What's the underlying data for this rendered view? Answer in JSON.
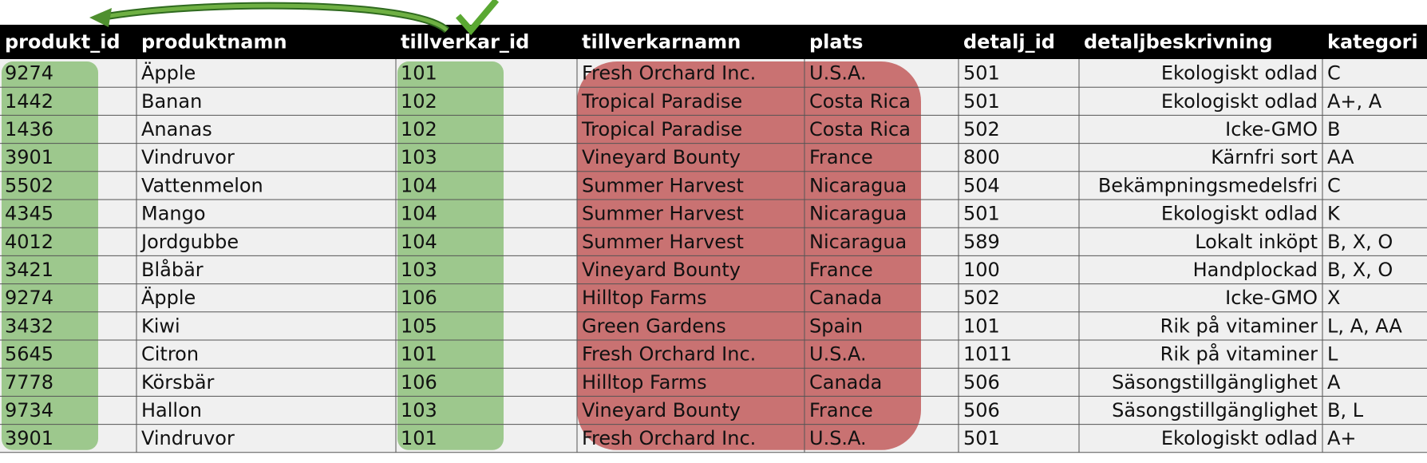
{
  "table": {
    "headers": [
      "produkt_id",
      "produktnamn",
      "tillverkar_id",
      "tillverkarnamn",
      "plats",
      "detalj_id",
      "detaljbeskrivning",
      "kategori"
    ],
    "rows": [
      [
        "9274",
        "Äpple",
        "101",
        "Fresh Orchard Inc.",
        "U.S.A.",
        "501",
        "Ekologiskt odlad",
        "C"
      ],
      [
        "1442",
        "Banan",
        "102",
        "Tropical Paradise",
        "Costa Rica",
        "501",
        "Ekologiskt odlad",
        "A+, A"
      ],
      [
        "1436",
        "Ananas",
        "102",
        "Tropical Paradise",
        "Costa Rica",
        "502",
        "Icke-GMO",
        "B"
      ],
      [
        "3901",
        "Vindruvor",
        "103",
        "Vineyard Bounty",
        "France",
        "800",
        "Kärnfri sort",
        "AA"
      ],
      [
        "5502",
        "Vattenmelon",
        "104",
        "Summer Harvest",
        "Nicaragua",
        "504",
        "Bekämpningsmedelsfri",
        "C"
      ],
      [
        "4345",
        "Mango",
        "104",
        "Summer Harvest",
        "Nicaragua",
        "501",
        "Ekologiskt odlad",
        "K"
      ],
      [
        "4012",
        "Jordgubbe",
        "104",
        "Summer Harvest",
        "Nicaragua",
        "589",
        "Lokalt inköpt",
        "B, X, O"
      ],
      [
        "3421",
        "Blåbär",
        "103",
        "Vineyard Bounty",
        "France",
        "100",
        "Handplockad",
        "B, X, O"
      ],
      [
        "9274",
        "Äpple",
        "106",
        "Hilltop Farms",
        "Canada",
        "502",
        "Icke-GMO",
        "X"
      ],
      [
        "3432",
        "Kiwi",
        "105",
        "Green Gardens",
        "Spain",
        "101",
        "Rik på vitaminer",
        "L, A, AA"
      ],
      [
        "5645",
        "Citron",
        "101",
        "Fresh Orchard Inc.",
        "U.S.A.",
        "1011",
        "Rik på vitaminer",
        "L"
      ],
      [
        "7778",
        "Körsbär",
        "106",
        "Hilltop Farms",
        "Canada",
        "506",
        "Säsongstillgänglighet",
        "A"
      ],
      [
        "9734",
        "Hallon",
        "103",
        "Vineyard Bounty",
        "France",
        "506",
        "Säsongstillgänglighet",
        "B, L"
      ],
      [
        "3901",
        "Vindruvor",
        "101",
        "Fresh Orchard Inc.",
        "U.S.A.",
        "501",
        "Ekologiskt odlad",
        "A+"
      ]
    ]
  }
}
